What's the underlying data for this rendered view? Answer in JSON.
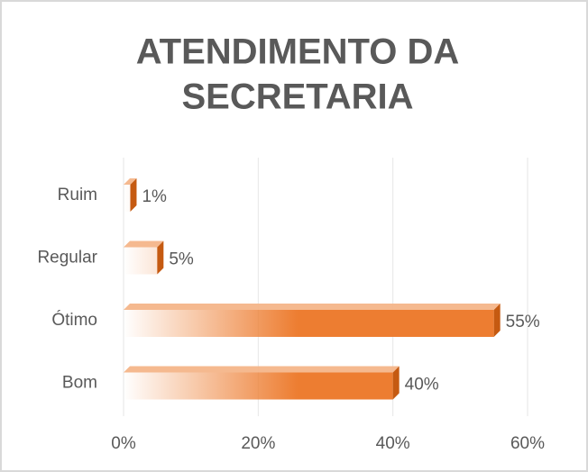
{
  "chart_data": {
    "type": "bar",
    "orientation": "horizontal",
    "title": [
      "ATENDIMENTO DA",
      "SECRETARIA"
    ],
    "categories": [
      "Ruim",
      "Regular",
      "Ótimo",
      "Bom"
    ],
    "values": [
      1,
      5,
      55,
      40
    ],
    "value_labels": [
      "1%",
      "5%",
      "55%",
      "40%"
    ],
    "color": "#ed7d31",
    "xlim": [
      0,
      60
    ],
    "xticks": [
      {
        "value": 0,
        "label": "0%"
      },
      {
        "value": 20,
        "label": "20%"
      },
      {
        "value": 40,
        "label": "40%"
      },
      {
        "value": 60,
        "label": "60%"
      }
    ],
    "grid": true
  }
}
